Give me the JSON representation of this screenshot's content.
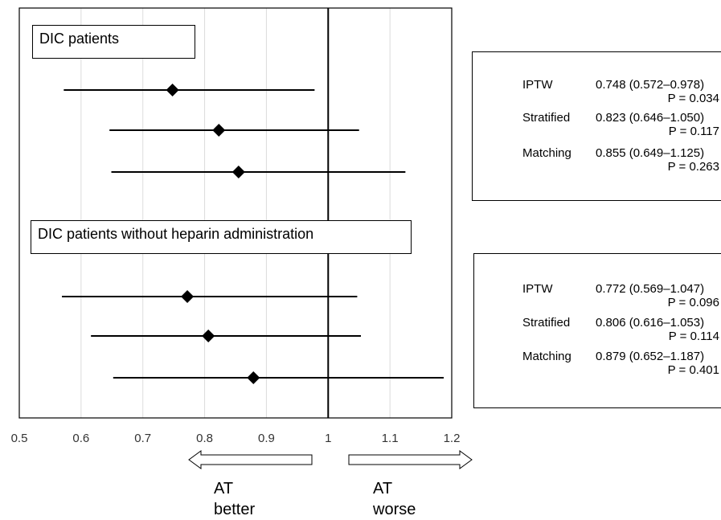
{
  "chart_data": {
    "type": "forest",
    "xlim": [
      0.5,
      1.2
    ],
    "x_ticks": [
      "0.5",
      "0.6",
      "0.7",
      "0.8",
      "0.9",
      "1",
      "1.1",
      "1.2"
    ],
    "reference_line": 1,
    "grid": "vertical",
    "groups": [
      {
        "title": "DIC patients",
        "rows": [
          {
            "method": "IPTW",
            "estimate": 0.748,
            "lower": 0.572,
            "upper": 0.978,
            "ci_text": "0.748 (0.572–0.978)",
            "p_text": "P = 0.034"
          },
          {
            "method": "Stratified",
            "estimate": 0.823,
            "lower": 0.646,
            "upper": 1.05,
            "ci_text": "0.823 (0.646–1.050)",
            "p_text": "P = 0.117"
          },
          {
            "method": "Matching",
            "estimate": 0.855,
            "lower": 0.649,
            "upper": 1.125,
            "ci_text": "0.855 (0.649–1.125)",
            "p_text": "P = 0.263"
          }
        ]
      },
      {
        "title": "DIC patients without heparin administration",
        "rows": [
          {
            "method": "IPTW",
            "estimate": 0.772,
            "lower": 0.569,
            "upper": 1.047,
            "ci_text": "0.772 (0.569–1.047)",
            "p_text": "P = 0.096"
          },
          {
            "method": "Stratified",
            "estimate": 0.806,
            "lower": 0.616,
            "upper": 1.053,
            "ci_text": "0.806 (0.616–1.053)",
            "p_text": "P = 0.114"
          },
          {
            "method": "Matching",
            "estimate": 0.879,
            "lower": 0.652,
            "upper": 1.187,
            "ci_text": "0.879 (0.652–1.187)",
            "p_text": "P = 0.401"
          }
        ]
      }
    ],
    "direction_labels": {
      "left_line1": "AT",
      "left_line2": "better",
      "right_line1": "AT",
      "right_line2": "worse"
    }
  }
}
